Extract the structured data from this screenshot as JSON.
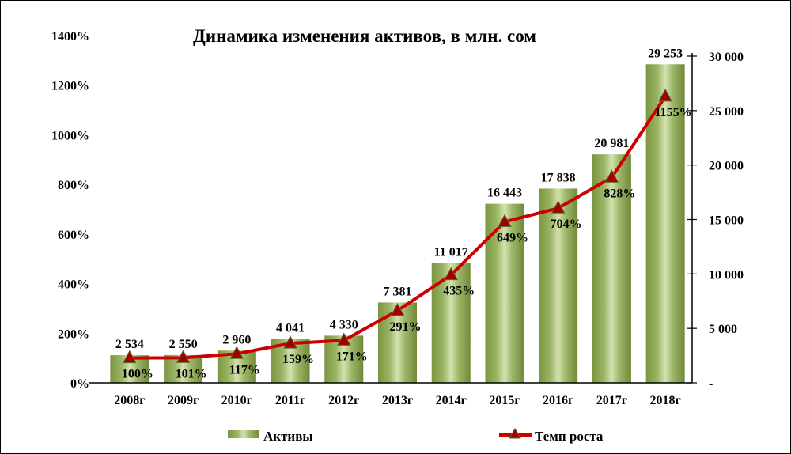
{
  "chart_data": {
    "type": "bar+line",
    "title": "Динамика изменения активов, в млн. сом",
    "categories": [
      "2008г",
      "2009г",
      "2010г",
      "2011г",
      "2012г",
      "2013г",
      "2014г",
      "2015г",
      "2016г",
      "2017г",
      "2018г"
    ],
    "series": [
      {
        "name": "Активы",
        "type": "bar",
        "axis": "right",
        "values": [
          2534,
          2550,
          2960,
          4041,
          4330,
          7381,
          11017,
          16443,
          17838,
          20981,
          29253
        ],
        "labels": [
          "2 534",
          "2 550",
          "2 960",
          "4 041",
          "4 330",
          "7 381",
          "11 017",
          "16 443",
          "17 838",
          "20 981",
          "29 253"
        ]
      },
      {
        "name": "Темп роста",
        "type": "line",
        "axis": "left",
        "values": [
          100,
          101,
          117,
          159,
          171,
          291,
          435,
          649,
          704,
          828,
          1155
        ],
        "labels": [
          "100%",
          "101%",
          "117%",
          "159%",
          "171%",
          "291%",
          "435%",
          "649%",
          "704%",
          "828%",
          "1155%"
        ]
      }
    ],
    "left_axis": {
      "range": [
        0,
        1400
      ],
      "ticks": [
        "0%",
        "200%",
        "400%",
        "600%",
        "800%",
        "1000%",
        "1200%",
        "1400%"
      ]
    },
    "right_axis": {
      "range": [
        0,
        30000
      ],
      "ticks": [
        "-",
        "5 000",
        "10 000",
        "15 000",
        "20 000",
        "25 000",
        "30 000"
      ]
    },
    "grid": false,
    "legend": "bottom",
    "colors": {
      "bar": "#7a9640",
      "bar_highlight": "#d4e2b0",
      "line": "#cc0000",
      "marker": "#a00000",
      "marker_edge": "#5a6e2a"
    }
  }
}
